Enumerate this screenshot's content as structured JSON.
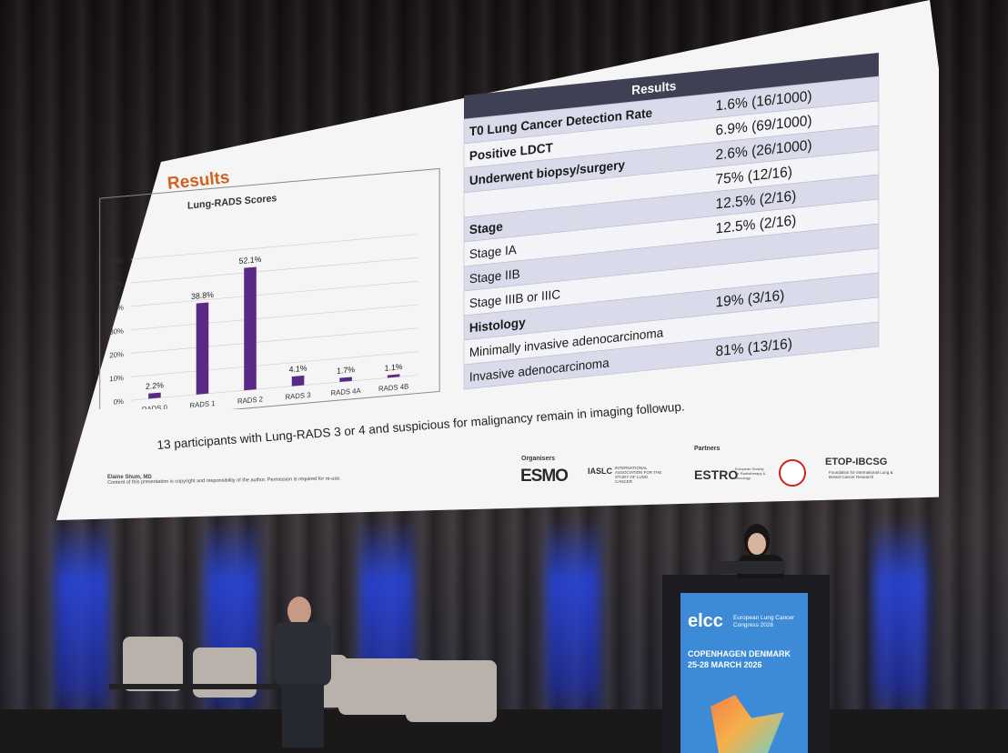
{
  "slide": {
    "title": "Results",
    "chart": {
      "title": "Lung-RADS Scores",
      "y_ticks": [
        "0%",
        "10%",
        "20%",
        "30%",
        "40%",
        "50%",
        "60%"
      ],
      "caption": "13 participants with Lung-RADS 3 or 4 and suspicious for malignancy remain in imaging followup."
    },
    "table": {
      "header": "Results",
      "rows": [
        {
          "label": "T0 Lung Cancer Detection Rate",
          "value": "1.6% (16/1000)"
        },
        {
          "label": "Positive LDCT",
          "value": "6.9% (69/1000)"
        },
        {
          "label": "Underwent biopsy/surgery",
          "value": "2.6% (26/1000)"
        },
        {
          "label": "",
          "value": "75% (12/16)"
        },
        {
          "label": "Stage",
          "value": "12.5% (2/16)"
        },
        {
          "label": "Stage IA",
          "value": "12.5% (2/16)"
        },
        {
          "label": "Stage IIB",
          "value": ""
        },
        {
          "label": "Stage IIIB or IIIC",
          "value": ""
        },
        {
          "label": "Histology",
          "value": "19% (3/16)"
        },
        {
          "label": "Minimally invasive adenocarcinoma",
          "value": ""
        },
        {
          "label": "Invasive adenocarcinoma",
          "value": "81% (13/16)"
        }
      ]
    },
    "author": "Elaine Shum, MD",
    "disclaimer": "Content of this presentation is copyright and responsibility of the author. Permission is required for re-use.",
    "organisers_label": "Organisers",
    "partners_label": "Partners",
    "logos": [
      "ESMO",
      "IASLC",
      "ESTRO",
      "ETOP-IBCSG"
    ],
    "iaslc_sub": "INTERNATIONAL ASSOCIATION FOR THE STUDY OF LUNG CANCER",
    "estro_sub": "European Society for Radiotherapy & Oncology",
    "etop_sub": "Foundation for International Lung & Breast Cancer Research"
  },
  "podium": {
    "brand": "elcc",
    "event": "European Lung Cancer Congress 2026",
    "city": "COPENHAGEN DENMARK",
    "dates": "25-28 MARCH 2026"
  },
  "chart_data": {
    "type": "bar",
    "title": "Lung-RADS Scores",
    "categories": [
      "RADS 0",
      "RADS 1",
      "RADS 2",
      "RADS 3",
      "RADS 4A",
      "RADS 4B"
    ],
    "values": [
      2.2,
      38.8,
      52.1,
      4.1,
      1.7,
      1.1
    ],
    "value_labels": [
      "2.2%",
      "38.8%",
      "52.1%",
      "4.1%",
      "1.7%",
      "1.1%"
    ],
    "ylim": [
      0,
      60
    ],
    "y_unit": "%",
    "bar_color": "#5b2a86",
    "grid": true
  }
}
